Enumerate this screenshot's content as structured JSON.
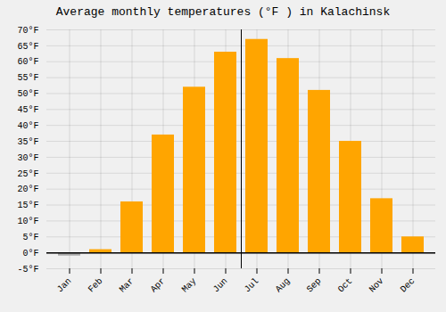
{
  "chart_data": {
    "type": "bar",
    "title": "Average monthly temperatures (°F ) in Kalachinsk",
    "categories": [
      "Jan",
      "Feb",
      "Mar",
      "Apr",
      "May",
      "Jun",
      "Jul",
      "Aug",
      "Sep",
      "Oct",
      "Nov",
      "Dec"
    ],
    "values": [
      -1,
      1,
      16,
      37,
      52,
      63,
      67,
      61,
      51,
      35,
      17,
      5
    ],
    "colors": [
      "#AAAAAA",
      "#FFA500",
      "#FFA500",
      "#FFA500",
      "#FFA500",
      "#FFA500",
      "#FFA500",
      "#FFA500",
      "#FFA500",
      "#FFA500",
      "#FFA500",
      "#FFA500"
    ],
    "ylim": [
      -5,
      70
    ],
    "yticks": [
      {
        "value": -5,
        "label": "-5°F"
      },
      {
        "value": 0,
        "label": "0°F"
      },
      {
        "value": 5,
        "label": "5°F"
      },
      {
        "value": 10,
        "label": "10°F"
      },
      {
        "value": 15,
        "label": "15°F"
      },
      {
        "value": 20,
        "label": "20°F"
      },
      {
        "value": 25,
        "label": "25°F"
      },
      {
        "value": 30,
        "label": "30°F"
      },
      {
        "value": 35,
        "label": "35°F"
      },
      {
        "value": 40,
        "label": "40°F"
      },
      {
        "value": 45,
        "label": "45°F"
      },
      {
        "value": 50,
        "label": "50°F"
      },
      {
        "value": 55,
        "label": "55°F"
      },
      {
        "value": 60,
        "label": "60°F"
      },
      {
        "value": 65,
        "label": "65°F"
      },
      {
        "value": 70,
        "label": "70°F"
      }
    ],
    "grid": true
  }
}
